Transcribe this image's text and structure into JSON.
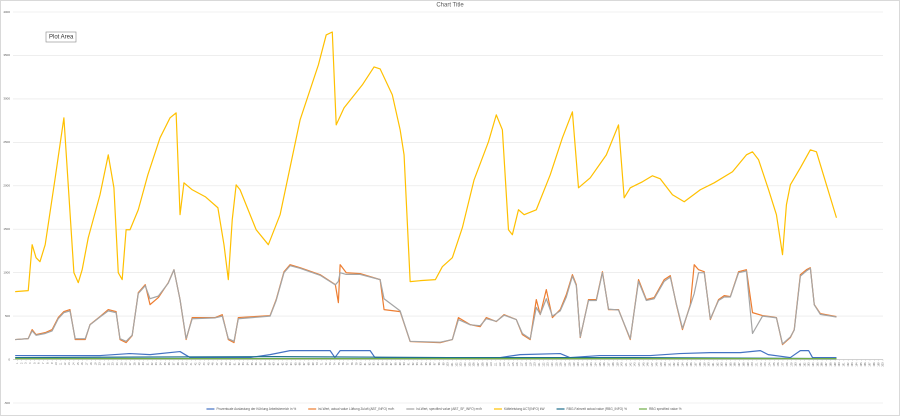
{
  "chart_data": {
    "type": "line",
    "title": "Chart Title",
    "annotations": [
      "Plot Area"
    ],
    "xlim": [
      0,
      200
    ],
    "ylim": [
      -500,
      4000
    ],
    "yticks": [
      -500,
      0,
      500,
      1000,
      1500,
      2000,
      2500,
      3000,
      3500,
      4000
    ],
    "xticks": [
      1,
      2,
      3,
      4,
      5,
      6,
      7,
      8,
      9,
      10,
      11,
      12,
      13,
      14,
      15,
      16,
      17,
      18,
      19,
      20,
      21,
      22,
      23,
      24,
      25,
      26,
      27,
      28,
      29,
      30,
      31,
      32,
      33,
      34,
      35,
      36,
      37,
      38,
      39,
      40,
      41,
      42,
      43,
      44,
      45,
      46,
      47,
      48,
      49,
      50,
      51,
      52,
      53,
      54,
      55,
      56,
      57,
      58,
      59,
      60,
      61,
      62,
      63,
      64,
      65,
      66,
      67,
      68,
      69,
      70,
      71,
      72,
      73,
      74,
      75,
      76,
      77,
      78,
      79,
      80,
      81,
      82,
      83,
      84,
      85,
      86,
      87,
      88,
      89,
      90,
      91,
      92,
      93,
      94,
      95,
      96,
      97,
      98,
      99,
      100,
      101,
      102,
      103,
      104,
      105,
      106,
      107,
      108,
      109,
      110,
      111,
      112,
      113,
      114,
      115,
      116,
      117,
      118,
      119,
      120,
      121,
      122,
      123,
      124,
      125,
      126,
      127,
      128,
      129,
      130,
      131,
      132,
      133,
      134,
      135,
      136,
      137,
      138,
      139,
      140,
      141,
      142,
      143,
      144,
      145,
      146,
      147,
      148,
      149,
      150,
      151,
      152,
      153,
      154,
      155,
      156,
      157,
      158,
      159,
      160,
      161,
      162,
      163,
      164,
      165,
      166,
      167,
      168,
      169,
      170,
      171,
      172,
      173,
      174,
      175,
      176,
      177,
      178,
      179,
      180,
      181,
      182,
      183,
      184,
      185,
      186,
      187,
      188,
      189,
      190,
      191,
      192,
      193,
      194,
      195,
      196,
      197,
      198,
      199,
      200
    ],
    "grid": true,
    "legend": "bottom",
    "series": [
      {
        "name": "Prozentuale Auslastung der Kühlung Arbeitsbereich in %",
        "color": "#4472c4",
        "x": [
          0.5,
          20,
          26.9,
          31.5,
          38.4,
          40.7,
          54.5,
          59.1,
          63.7,
          72.9,
          74,
          75.2,
          82.1,
          83.2,
          112,
          116.6,
          125.8,
          128,
          134.9,
          146.5,
          153.3,
          160.3,
          167.2,
          171.8,
          173.6,
          178.7,
          181,
          182.9,
          183.8,
          189.3
        ],
        "values": [
          46,
          46,
          69,
          57,
          92,
          23,
          23,
          57,
          103,
          103,
          23,
          103,
          103,
          23,
          23,
          57,
          69,
          23,
          46,
          46,
          69,
          80,
          80,
          103,
          57,
          23,
          103,
          103,
          23,
          23
        ]
      },
      {
        "name": "Ist-Wert, actual value Lüftung Zuluft (ABT_INFO) m³/h",
        "color": "#ed7d31",
        "x": [
          0.5,
          3.5,
          4.4,
          5.3,
          7.4,
          9,
          10.4,
          11.7,
          13.1,
          14.3,
          16.6,
          17.7,
          20,
          21.9,
          23.7,
          24.6,
          26,
          27.4,
          28.8,
          30.4,
          31.5,
          33.4,
          35.7,
          37,
          38.4,
          39.8,
          41.2,
          46.5,
          48.1,
          49.5,
          50.8,
          51.8,
          59.1,
          60.5,
          62.3,
          63.7,
          66,
          70.6,
          74.1,
          74.8,
          75.2,
          76.6,
          79.8,
          84.4,
          85.3,
          89,
          91.3,
          98.2,
          101,
          102.4,
          105.1,
          107.4,
          108.8,
          111.1,
          112.9,
          115.7,
          117.1,
          118.9,
          120.3,
          121.2,
          122.6,
          124,
          125.8,
          127.2,
          128.6,
          129.5,
          130.4,
          132.3,
          134.1,
          135.5,
          136.9,
          139.2,
          141.9,
          143.8,
          145.6,
          147.4,
          149.7,
          151.1,
          152.5,
          153.9,
          155.7,
          156.6,
          157.6,
          158.9,
          160.3,
          162.2,
          163.5,
          164.9,
          166.8,
          168.6,
          170,
          172.3,
          174.1,
          175.5,
          176.9,
          178.7,
          179.6,
          181,
          182.4,
          183.3,
          184.2,
          185.6,
          189.3
        ],
        "values": [
          230,
          241,
          345,
          287,
          310,
          345,
          483,
          552,
          575,
          230,
          230,
          402,
          494,
          575,
          552,
          230,
          195,
          276,
          770,
          862,
          632,
          713,
          885,
          1034,
          690,
          230,
          483,
          483,
          517,
          230,
          195,
          483,
          506,
          690,
          1011,
          1092,
          1057,
          977,
          862,
          655,
          1092,
          1000,
          989,
          920,
          575,
          552,
          207,
          195,
          230,
          483,
          402,
          379,
          483,
          437,
          517,
          460,
          287,
          230,
          690,
          517,
          805,
          483,
          575,
          747,
          977,
          862,
          253,
          690,
          690,
          1011,
          575,
          575,
          230,
          920,
          690,
          713,
          920,
          966,
          632,
          345,
          632,
          1092,
          1034,
          1011,
          460,
          690,
          736,
          724,
          1011,
          1034,
          540,
          506,
          494,
          483,
          172,
          253,
          345,
          977,
          1034,
          1057,
          632,
          529,
          494
        ]
      },
      {
        "name": "Ist-Wert, specified value (ABT_SF_INFO) m³/h",
        "color": "#a5a5a5",
        "x": [
          0.5,
          3.5,
          4.4,
          5.3,
          7.4,
          9,
          10.4,
          11.7,
          13.1,
          14.3,
          16.6,
          17.7,
          20,
          21.9,
          23.7,
          24.6,
          26,
          27.4,
          28.8,
          30.4,
          31.5,
          33.4,
          35.7,
          37,
          38.4,
          39.8,
          41.2,
          46.5,
          48.1,
          49.5,
          50.8,
          51.8,
          59.1,
          60.5,
          62.3,
          63.7,
          66,
          70.6,
          74.1,
          74.8,
          75.2,
          76.6,
          79.8,
          84.4,
          85.3,
          89,
          91.3,
          98.2,
          101,
          102.4,
          105.1,
          107.4,
          108.8,
          111.1,
          112.9,
          115.7,
          117.1,
          118.9,
          120.3,
          121.2,
          122.6,
          124,
          125.8,
          127.2,
          128.6,
          129.5,
          130.4,
          132.3,
          134.1,
          135.5,
          136.9,
          139.2,
          141.9,
          143.8,
          145.6,
          147.4,
          149.7,
          151.1,
          152.5,
          153.9,
          155.7,
          156.6,
          157.6,
          158.9,
          160.3,
          162.2,
          163.5,
          164.9,
          166.8,
          168.6,
          170,
          172.3,
          174.1,
          175.5,
          176.9,
          178.7,
          179.6,
          181,
          182.4,
          183.3,
          184.2,
          185.6,
          189.3
        ],
        "values": [
          230,
          241,
          330,
          280,
          300,
          330,
          470,
          540,
          560,
          240,
          240,
          400,
          490,
          560,
          540,
          240,
          210,
          280,
          760,
          850,
          700,
          730,
          880,
          1034,
          690,
          240,
          470,
          480,
          500,
          240,
          210,
          470,
          500,
          680,
          1000,
          1080,
          1050,
          970,
          860,
          900,
          1000,
          980,
          980,
          920,
          700,
          560,
          210,
          200,
          230,
          460,
          400,
          390,
          470,
          440,
          510,
          460,
          300,
          240,
          600,
          520,
          700,
          500,
          560,
          720,
          960,
          850,
          260,
          680,
          680,
          1000,
          580,
          570,
          240,
          900,
          680,
          700,
          900,
          950,
          640,
          360,
          620,
          760,
          1000,
          1000,
          470,
          680,
          720,
          720,
          1000,
          1020,
          300,
          500,
          490,
          480,
          180,
          260,
          340,
          960,
          1020,
          1050,
          630,
          520,
          490
        ]
      },
      {
        "name": "Kälteleistung ACT(INFO) kW",
        "color": "#ffc000",
        "x": [
          0.5,
          3.5,
          4.4,
          5.3,
          6.2,
          7.4,
          9.7,
          11.7,
          14,
          15,
          15.9,
          17.3,
          20,
          21.9,
          23.2,
          24.2,
          25.1,
          26,
          26.9,
          28.8,
          31,
          33.8,
          36.1,
          37.5,
          38.4,
          39.3,
          41.2,
          44.2,
          47.1,
          48.5,
          49.5,
          50.4,
          51.3,
          52.2,
          55.9,
          58.7,
          59.6,
          61.4,
          66,
          70.2,
          72,
          73.4,
          74.3,
          76.1,
          80.3,
          83,
          84.4,
          87.2,
          89,
          89.9,
          91.3,
          93.6,
          97.1,
          98.7,
          101,
          103.3,
          106,
          109.3,
          111.1,
          112.5,
          113.9,
          114.8,
          116.2,
          117.5,
          120.3,
          123.5,
          126.3,
          128.6,
          130,
          132.7,
          136.4,
          139.2,
          140.5,
          141.9,
          144.7,
          147,
          148.8,
          151.6,
          154.3,
          158,
          161.2,
          165.4,
          168.6,
          170,
          171.4,
          173.7,
          175.5,
          176.9,
          177.8,
          178.7,
          181,
          183.3,
          184.7,
          187,
          189.3
        ],
        "values": [
          782,
          793,
          1322,
          1172,
          1126,
          1322,
          2092,
          2782,
          1000,
          885,
          1034,
          1402,
          1897,
          2356,
          1977,
          1000,
          920,
          1494,
          1494,
          1724,
          2126,
          2552,
          2782,
          2839,
          1667,
          2034,
          1954,
          1874,
          1747,
          1322,
          920,
          1609,
          2011,
          1954,
          1494,
          1322,
          1437,
          1667,
          2759,
          3391,
          3736,
          3770,
          2701,
          2897,
          3161,
          3368,
          3345,
          3046,
          2644,
          2356,
          897,
          908,
          920,
          1069,
          1172,
          1517,
          2069,
          2506,
          2816,
          2644,
          1494,
          1437,
          1724,
          1667,
          1724,
          2126,
          2552,
          2851,
          1977,
          2092,
          2356,
          2701,
          1862,
          1977,
          2046,
          2115,
          2080,
          1897,
          1816,
          1954,
          2034,
          2161,
          2356,
          2391,
          2299,
          1954,
          1667,
          1207,
          1782,
          2011,
          2207,
          2414,
          2391,
          2011,
          1632
        ]
      },
      {
        "name": "RBG-Fahrzeit actual value (RBG_INFO) %",
        "color": "#1f6f8b",
        "x": [
          0.5,
          60,
          100,
          140,
          189.3
        ],
        "values": [
          23,
          34,
          23,
          23,
          11
        ]
      },
      {
        "name": "RBG specified value %",
        "color": "#70ad47",
        "x": [
          0.5,
          189.3
        ],
        "values": [
          11,
          11
        ]
      }
    ]
  }
}
